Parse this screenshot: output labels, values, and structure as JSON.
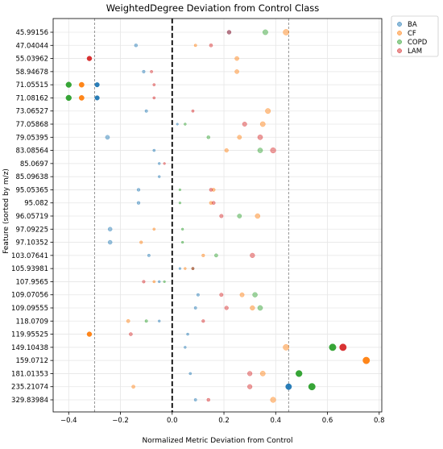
{
  "chart_data": {
    "type": "scatter",
    "title": "WeightedDegree Deviation from Control Class",
    "xlabel": "Normalized Metric Deviation from Control",
    "ylabel": "Feature (sorted by m/z)",
    "xlim": [
      -0.46,
      0.81
    ],
    "xticks": [
      "−0.4",
      "−0.2",
      "0.0",
      "0.2",
      "0.4",
      "0.6",
      "0.8"
    ],
    "xtick_values": [
      -0.4,
      -0.2,
      0.0,
      0.2,
      0.4,
      0.6,
      0.8
    ],
    "grid": true,
    "legend_position": "outside-top-right",
    "reference_lines": [
      {
        "x": 0.0,
        "style": "dashed",
        "color": "#000000"
      },
      {
        "x": -0.3,
        "style": "dashed",
        "color": "#888888"
      },
      {
        "x": 0.45,
        "style": "dashed",
        "color": "#888888"
      }
    ],
    "categories": [
      "45.99156",
      "47.04044",
      "55.03962",
      "58.94678",
      "71.05515",
      "71.08162",
      "73.06527",
      "77.05868",
      "79.05395",
      "83.08564",
      "85.0697",
      "85.09638",
      "95.05365",
      "95.082",
      "96.05719",
      "97.09225",
      "97.10352",
      "103.07641",
      "105.93981",
      "107.9565",
      "109.07056",
      "109.09555",
      "118.0709",
      "119.95525",
      "149.10438",
      "159.0712",
      "181.01353",
      "235.21074",
      "329.83984"
    ],
    "series": [
      {
        "name": "BA",
        "color": "#1f77b4",
        "values": [
          0.22,
          -0.14,
          null,
          -0.11,
          -0.29,
          -0.29,
          -0.1,
          0.02,
          -0.25,
          -0.07,
          -0.05,
          -0.05,
          -0.13,
          -0.13,
          null,
          -0.24,
          -0.24,
          -0.09,
          0.03,
          -0.05,
          0.1,
          0.09,
          -0.05,
          0.06,
          0.05,
          null,
          0.07,
          0.45,
          0.09
        ]
      },
      {
        "name": "CF",
        "color": "#ff7f0e",
        "values": [
          0.44,
          0.09,
          0.25,
          0.25,
          -0.35,
          -0.35,
          0.37,
          0.35,
          0.26,
          0.21,
          null,
          null,
          0.16,
          0.15,
          0.33,
          -0.07,
          -0.12,
          0.12,
          0.05,
          -0.07,
          0.27,
          0.31,
          -0.17,
          -0.32,
          0.44,
          0.75,
          0.35,
          -0.15,
          0.39
        ]
      },
      {
        "name": "COPD",
        "color": "#2ca02c",
        "values": [
          0.36,
          null,
          null,
          null,
          -0.4,
          -0.4,
          null,
          0.05,
          0.14,
          0.34,
          null,
          null,
          0.03,
          0.03,
          0.26,
          0.04,
          0.04,
          0.17,
          0.08,
          -0.03,
          0.32,
          0.34,
          -0.1,
          null,
          0.62,
          null,
          0.49,
          0.54,
          null
        ]
      },
      {
        "name": "LAM",
        "color": "#d62728",
        "values": [
          0.22,
          0.15,
          -0.32,
          -0.08,
          -0.07,
          -0.07,
          0.08,
          0.28,
          0.34,
          0.39,
          -0.03,
          null,
          0.15,
          0.16,
          0.19,
          null,
          null,
          0.31,
          0.08,
          -0.11,
          0.19,
          0.21,
          0.12,
          -0.16,
          0.66,
          null,
          0.3,
          0.3,
          0.14
        ]
      }
    ]
  }
}
